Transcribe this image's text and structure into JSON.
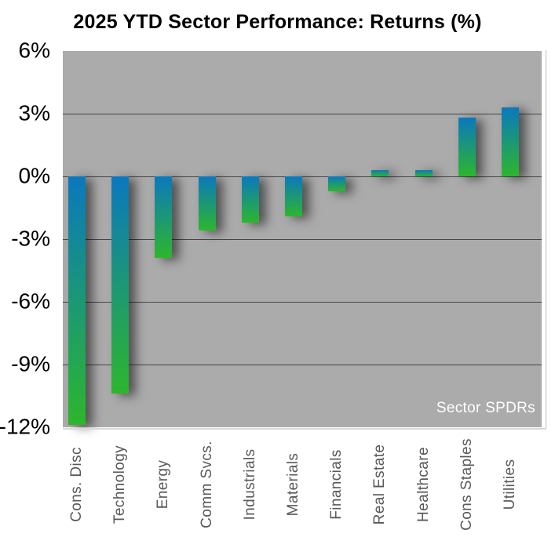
{
  "title": "2025 YTD Sector Performance: Returns (%)",
  "watermark": "Sector SPDRs",
  "chart_data": {
    "type": "bar",
    "title": "2025 YTD Sector Performance: Returns (%)",
    "categories": [
      "Cons. Disc",
      "Technology",
      "Energy",
      "Comm Svcs.",
      "Industrials",
      "Materials",
      "Financials",
      "Real Estate",
      "Healthcare",
      "Cons Staples",
      "Utilities"
    ],
    "values": [
      -11.9,
      -10.4,
      -3.9,
      -2.6,
      -2.2,
      -1.9,
      -0.7,
      0.3,
      0.3,
      2.8,
      3.3
    ],
    "xlabel": "",
    "ylabel": "Returns (%)",
    "ylim": [
      -12,
      6
    ],
    "y_tick_values": [
      6,
      3,
      0,
      -3,
      -6,
      -9,
      -12
    ],
    "y_tick_labels": [
      "6%",
      "3%",
      "0%",
      "-3%",
      "-6%",
      "-9%",
      "-12%"
    ],
    "grid": "horizontal",
    "legend": "none",
    "annotation": "Sector SPDRs",
    "bar_style": "vertical blue-to-green gradient bars with soft dark drop shadow offset right",
    "colors": {
      "bar_top": "#0b78be",
      "bar_bottom": "#2db62d",
      "plot_bg": "#ababab",
      "gridline": "#464646",
      "axis_text": "#000000",
      "category_text": "#595959",
      "watermark_text": "#ffffff"
    }
  }
}
